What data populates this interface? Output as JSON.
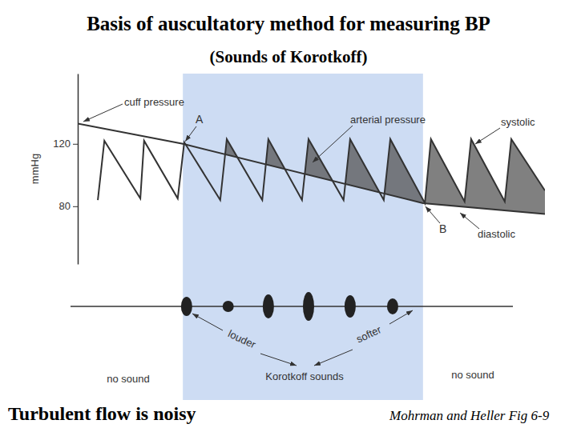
{
  "chart_data": {
    "type": "line",
    "title": "Basis of auscultatory method for measuring BP",
    "subtitle": "(Sounds of Korotkoff)",
    "y_label": "mmHg",
    "xlim": [
      0,
      100
    ],
    "ylim": [
      43,
      165
    ],
    "yticks": [
      80,
      120
    ],
    "tick_labels": "y",
    "series": [
      {
        "name": "cuff pressure",
        "color": "#333333",
        "x": [
          0,
          22.5,
          73.9,
          100
        ],
        "values": [
          133,
          120,
          82,
          75
        ]
      },
      {
        "name": "arterial pressure",
        "color": "#333333",
        "x": [
          4.3,
          5.7,
          13.4,
          14.2,
          21.4,
          22.8,
          30.5,
          31.9,
          39.5,
          40.8,
          48.0,
          49.4,
          56.9,
          58.3,
          65.5,
          66.9,
          74.3,
          75.6,
          82.8,
          84.2,
          91.4,
          92.8,
          100
        ],
        "values": [
          84,
          122,
          85,
          122,
          85,
          121,
          84,
          123,
          84,
          123,
          84,
          123,
          84,
          123,
          84,
          123,
          82,
          123,
          83,
          123,
          83,
          123,
          90
        ]
      }
    ],
    "sounds": {
      "x": [
        23.3,
        32.2,
        40.8,
        49.4,
        58.3,
        67.4
      ],
      "amplitude": [
        12,
        7,
        15,
        18,
        14,
        10
      ],
      "ylim": [
        -20,
        20
      ]
    },
    "annotations": {
      "A": "A",
      "B": "B",
      "systolic": "systolic",
      "diastolic": "diastolic",
      "louder": "louder",
      "softer": "softer",
      "korotkoff": "Korotkoff sounds",
      "no_sound_left": "no sound",
      "no_sound_right": "no sound"
    },
    "caption": "Turbulent flow is noisy",
    "source": "Mohrman and Heller Fig 6-9"
  }
}
